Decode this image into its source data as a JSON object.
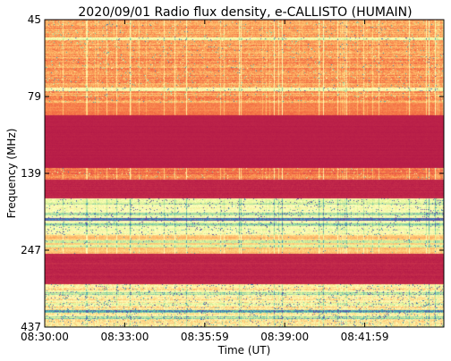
{
  "chart_data": {
    "type": "heatmap",
    "title": "2020/09/01  Radio flux density, e-CALLISTO (HUMAIN)",
    "xlabel": "Time (UT)",
    "ylabel": "Frequency (MHz)",
    "x_ticks": [
      "08:30:00",
      "08:33:00",
      "08:35:59",
      "08:39:00",
      "08:41:59"
    ],
    "y_ticks": [
      "45",
      "79",
      "139",
      "247",
      "437"
    ],
    "y_axis_direction": "frequency increases downward",
    "colormap": "Spectral_r",
    "grid": false,
    "bands": [
      {
        "y0": 0.0,
        "y1": 0.27,
        "level": 0.28,
        "noise": 0.12,
        "spikes": 0.03
      },
      {
        "y0": 0.27,
        "y1": 0.31,
        "level": 0.22,
        "noise": 0.06,
        "spikes": 0.0
      },
      {
        "y0": 0.31,
        "y1": 0.48,
        "level": 0.05,
        "noise": 0.01,
        "spikes": 0.0
      },
      {
        "y0": 0.48,
        "y1": 0.52,
        "level": 0.22,
        "noise": 0.1,
        "spikes": 0.02
      },
      {
        "y0": 0.52,
        "y1": 0.58,
        "level": 0.06,
        "noise": 0.02,
        "spikes": 0.0
      },
      {
        "y0": 0.58,
        "y1": 0.7,
        "level": 0.52,
        "noise": 0.12,
        "spikes": 0.05
      },
      {
        "y0": 0.7,
        "y1": 0.76,
        "level": 0.35,
        "noise": 0.08,
        "spikes": 0.02
      },
      {
        "y0": 0.76,
        "y1": 0.86,
        "level": 0.06,
        "noise": 0.02,
        "spikes": 0.0
      },
      {
        "y0": 0.86,
        "y1": 1.0,
        "level": 0.45,
        "noise": 0.16,
        "spikes": 0.06
      }
    ],
    "bright_lines": [
      {
        "y": 0.06,
        "level": 0.55
      },
      {
        "y": 0.225,
        "level": 0.5
      },
      {
        "y": 0.595,
        "level": 0.62
      },
      {
        "y": 0.63,
        "level": 0.68
      },
      {
        "y": 0.648,
        "level": 0.93
      },
      {
        "y": 0.665,
        "level": 0.72
      },
      {
        "y": 0.72,
        "level": 0.66
      },
      {
        "y": 0.735,
        "level": 0.6
      },
      {
        "y": 0.89,
        "level": 0.66
      },
      {
        "y": 0.925,
        "level": 0.62
      },
      {
        "y": 0.948,
        "level": 0.82
      },
      {
        "y": 0.968,
        "level": 0.7
      }
    ],
    "colors": {
      "low": "#9e0142",
      "mid": "#fdae61",
      "high": "#5e4fa2",
      "background": "#ffffff"
    }
  }
}
